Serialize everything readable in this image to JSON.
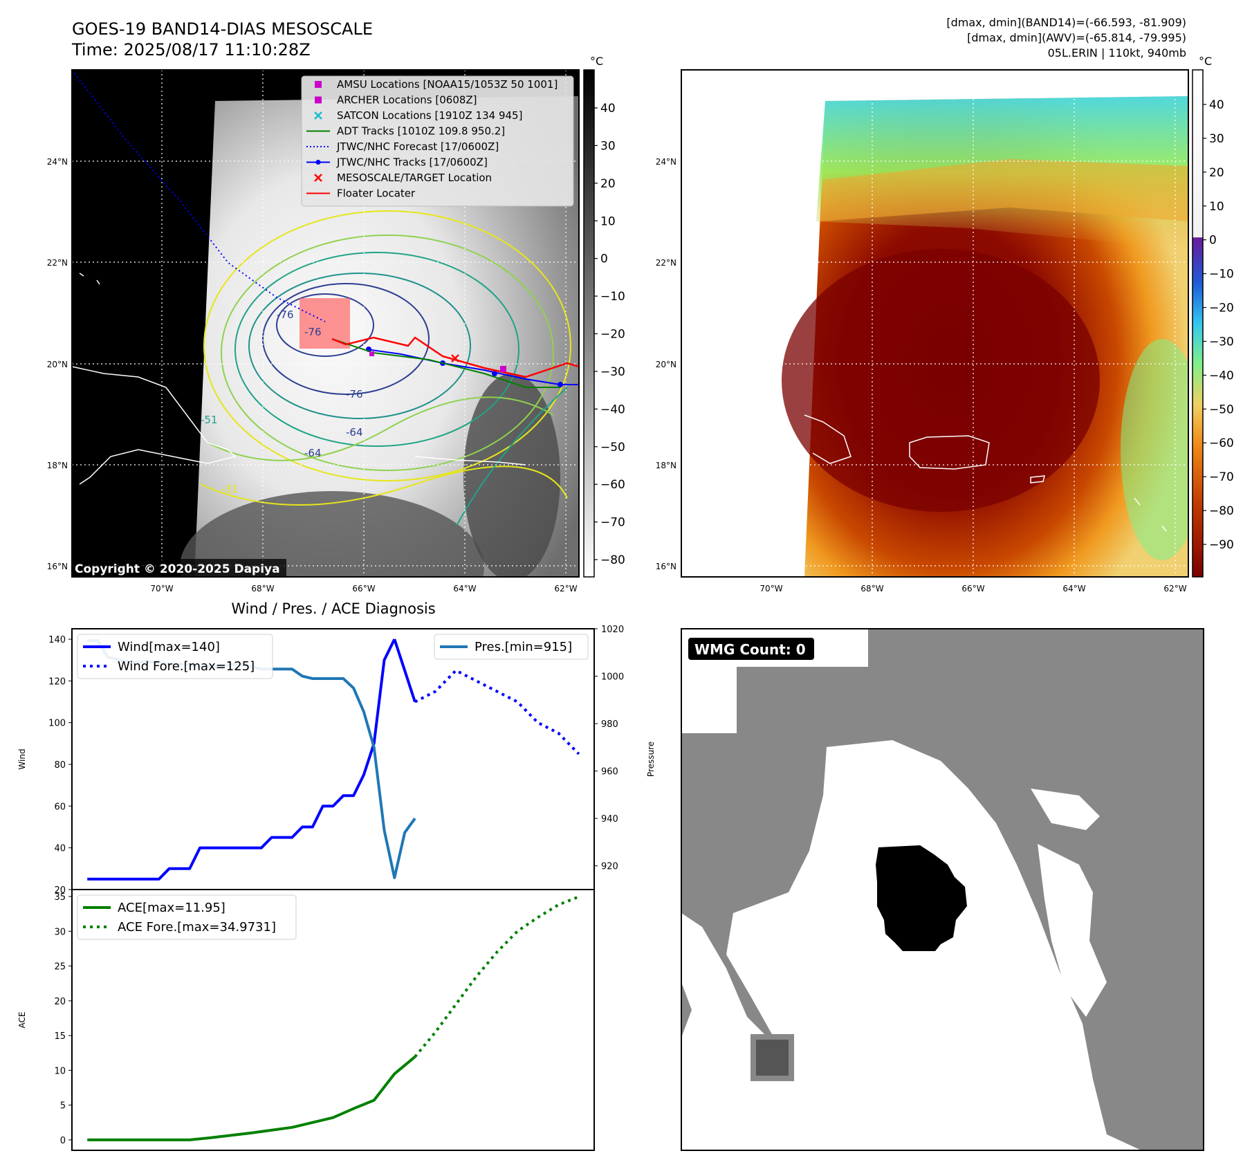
{
  "header": {
    "title_line1": "GOES-19 BAND14-DIAS MESOSCALE",
    "title_line2": "Time: 2025/08/17 11:10:28Z",
    "info_line1": "[dmax, dmin](BAND14)=(-66.593, -81.909)",
    "info_line2": "[dmax, dmin](AWV)=(-65.814, -79.995)",
    "info_line3": "05L.ERIN | 110kt, 940mb"
  },
  "map": {
    "lat_labels": [
      "24°N",
      "22°N",
      "20°N",
      "18°N",
      "16°N"
    ],
    "lon_labels": [
      "70°W",
      "68°W",
      "66°W",
      "64°W",
      "62°W"
    ],
    "copyright": "Copyright © 2020-2025 Dapiya",
    "contour_labels": [
      "-76",
      "-76",
      "-76",
      "-64",
      "-64",
      "-31",
      "-51"
    ]
  },
  "legend": {
    "items": [
      {
        "label": "AMSU Locations [NOAA15/1053Z 50 1001]",
        "color": "#cc00cc",
        "marker": "square"
      },
      {
        "label": "ARCHER Locations [0608Z]",
        "color": "#cc00cc",
        "marker": "square"
      },
      {
        "label": "SATCON Locations [1910Z 134 945]",
        "color": "#17becf",
        "marker": "x"
      },
      {
        "label": "ADT Tracks [1010Z 109.8 950.2]",
        "color": "#008000",
        "marker": "line"
      },
      {
        "label": "JTWC/NHC Forecast [17/0600Z]",
        "color": "#0000ff",
        "marker": "dotted"
      },
      {
        "label": "JTWC/NHC Tracks [17/0600Z]",
        "color": "#0000ff",
        "marker": "line-dot"
      },
      {
        "label": "MESOSCALE/TARGET Location",
        "color": "#ff0000",
        "marker": "x"
      },
      {
        "label": "Floater Locater",
        "color": "#ff0000",
        "marker": "line"
      }
    ]
  },
  "colorbar_gray": {
    "unit": "°C",
    "ticks": [
      "40",
      "30",
      "20",
      "10",
      "0",
      "−10",
      "−20",
      "−30",
      "−40",
      "−50",
      "−60",
      "−70",
      "−80"
    ]
  },
  "colorbar_awv": {
    "unit": "°C",
    "ticks": [
      "40",
      "30",
      "20",
      "10",
      "0",
      "−10",
      "−20",
      "−30",
      "−40",
      "−50",
      "−60",
      "−70",
      "−80",
      "−90"
    ]
  },
  "wmg": {
    "label": "WMG Count: 0"
  },
  "chart_data": [
    {
      "type": "line",
      "title": "Wind / Pres. / ACE Diagnosis",
      "ylabel": "Wind",
      "ylabel_right": "Pressure",
      "ylim": [
        20,
        145
      ],
      "ylim_right": [
        910,
        1020
      ],
      "yticks": [
        "20",
        "40",
        "60",
        "80",
        "100",
        "120",
        "140"
      ],
      "yticks_right": [
        "920",
        "940",
        "960",
        "980",
        "1000",
        "1020"
      ],
      "series": [
        {
          "name": "Wind[max=140]",
          "color": "#0000ff",
          "style": "solid",
          "axis": "left",
          "x": [
            0,
            1,
            2,
            3,
            4,
            5,
            6,
            7,
            8,
            9,
            10,
            11,
            12,
            13,
            14,
            15,
            16,
            17,
            18,
            19,
            20,
            21,
            22,
            23,
            24,
            25,
            26,
            27,
            28,
            29,
            30
          ],
          "values": [
            25,
            25,
            25,
            25,
            25,
            25,
            25,
            25,
            30,
            30,
            30,
            40,
            40,
            40,
            40,
            40,
            40,
            40,
            45,
            45,
            45,
            50,
            50,
            60,
            60,
            65,
            65,
            75,
            90,
            130,
            140
          ]
        },
        {
          "name": "",
          "color": "#0000ff",
          "style": "solid",
          "axis": "left",
          "x": [
            30,
            31,
            32
          ],
          "values": [
            140,
            125,
            110
          ]
        },
        {
          "name": "Wind Fore.[max=125]",
          "color": "#0000ff",
          "style": "dotted",
          "axis": "left",
          "x": [
            32,
            34,
            36,
            38,
            40,
            42,
            44,
            46,
            48
          ],
          "values": [
            110,
            115,
            125,
            120,
            115,
            110,
            100,
            95,
            85
          ]
        },
        {
          "name": "Pres.[min=915]",
          "color": "#1f77b4",
          "style": "solid",
          "axis": "right",
          "x": [
            0,
            1,
            2,
            3,
            4,
            5,
            6,
            7,
            8,
            9,
            10,
            11,
            12,
            13,
            14,
            15,
            16,
            17,
            18,
            19,
            20,
            21,
            22,
            23,
            24,
            25,
            26,
            27,
            28,
            29,
            30,
            31,
            32
          ],
          "values": [
            1015,
            1015,
            1008,
            1007,
            1006,
            1006,
            1006,
            1006,
            1005,
            1005,
            1005,
            1004,
            1004,
            1004,
            1005,
            1005,
            1004,
            1003,
            1003,
            1003,
            1003,
            1000,
            999,
            999,
            999,
            999,
            995,
            985,
            970,
            935,
            915,
            934,
            940
          ]
        }
      ]
    },
    {
      "type": "line",
      "ylabel": "ACE",
      "ylim": [
        -1.5,
        36
      ],
      "yticks": [
        "0",
        "5",
        "10",
        "15",
        "20",
        "25",
        "30",
        "35"
      ],
      "series": [
        {
          "name": "ACE[max=11.95]",
          "color": "#008000",
          "style": "solid",
          "x": [
            0,
            10,
            12,
            16,
            20,
            24,
            26,
            28,
            30,
            32
          ],
          "values": [
            0,
            0,
            0.3,
            1.0,
            1.8,
            3.2,
            4.5,
            5.7,
            9.5,
            11.95
          ]
        },
        {
          "name": "ACE Fore.[max=34.9731]",
          "color": "#008000",
          "style": "dotted",
          "x": [
            32,
            34,
            36,
            38,
            40,
            42,
            44,
            46,
            48
          ],
          "values": [
            11.95,
            15.5,
            19.5,
            23.5,
            27.0,
            30.0,
            32.0,
            33.8,
            34.97
          ]
        }
      ]
    }
  ]
}
